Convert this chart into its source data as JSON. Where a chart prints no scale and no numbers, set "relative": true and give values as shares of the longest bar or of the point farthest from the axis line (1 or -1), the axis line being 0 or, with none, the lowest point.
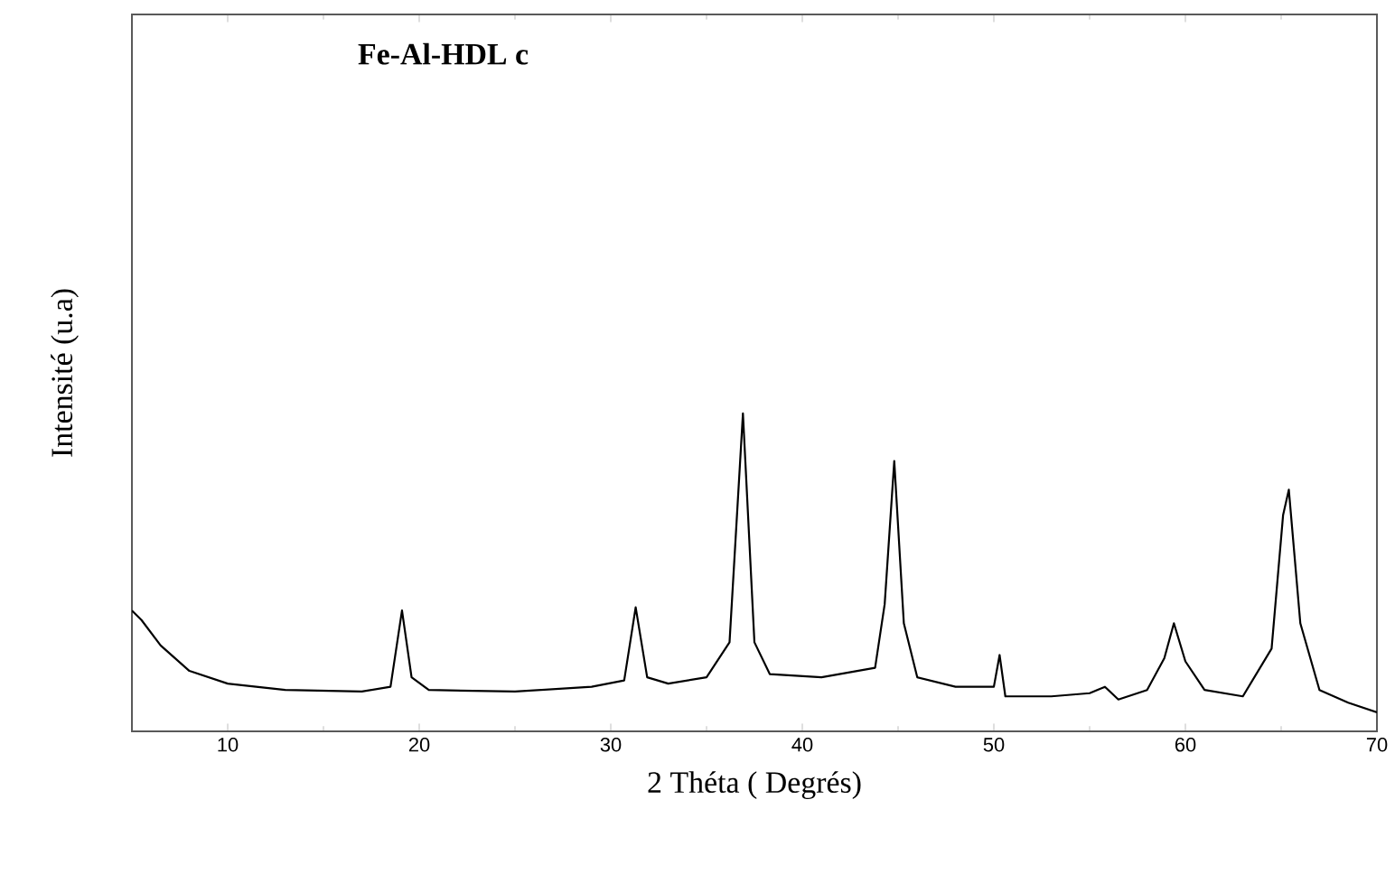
{
  "chart_data": {
    "type": "line",
    "title": "Fe-Al-HDL    c",
    "xlabel": "2 Théta ( Degrés)",
    "ylabel": "Intensité (u.a)",
    "relative": true,
    "tick_labels": "x",
    "xlim": [
      5,
      70
    ],
    "xticks": [
      10,
      20,
      30,
      40,
      50,
      60,
      70
    ],
    "x": [
      5,
      5.5,
      6.5,
      8,
      10,
      13,
      17,
      18.5,
      19.1,
      19.6,
      20.5,
      25,
      29,
      30.7,
      31.3,
      31.9,
      33,
      35,
      36.2,
      36.9,
      37.5,
      38.3,
      41,
      43.8,
      44.3,
      44.8,
      45.3,
      46,
      48,
      50,
      50.3,
      50.6,
      53,
      55,
      55.8,
      56.5,
      58,
      58.9,
      59.4,
      60,
      61,
      63,
      64.5,
      65.1,
      65.4,
      66,
      67,
      68.5,
      70
    ],
    "series": [
      {
        "color": "#000000",
        "values": [
          0.38,
          0.35,
          0.27,
          0.19,
          0.15,
          0.13,
          0.125,
          0.14,
          0.38,
          0.17,
          0.13,
          0.125,
          0.14,
          0.16,
          0.39,
          0.17,
          0.15,
          0.17,
          0.28,
          1,
          0.28,
          0.18,
          0.17,
          0.2,
          0.4,
          0.85,
          0.34,
          0.17,
          0.14,
          0.14,
          0.24,
          0.11,
          0.11,
          0.12,
          0.14,
          0.1,
          0.13,
          0.23,
          0.34,
          0.22,
          0.13,
          0.11,
          0.26,
          0.68,
          0.76,
          0.34,
          0.13,
          0.09,
          0.06
        ]
      }
    ]
  }
}
